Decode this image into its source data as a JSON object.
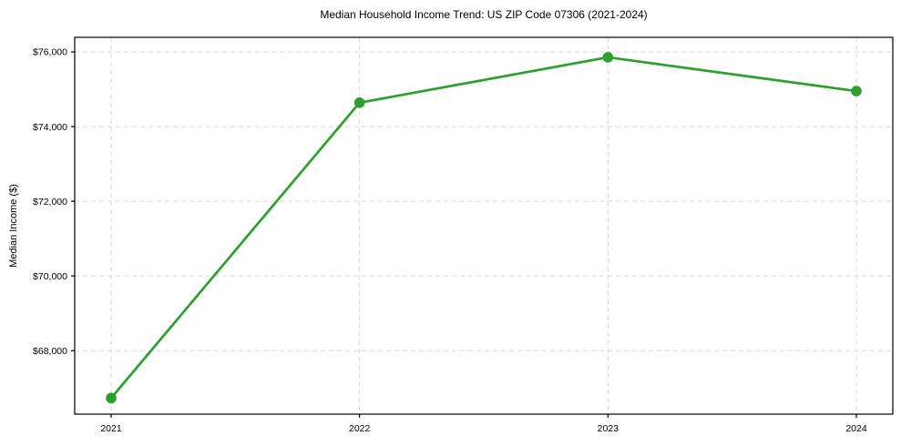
{
  "chart_data": {
    "type": "line",
    "title": "Median Household Income Trend: US ZIP Code 07306 (2021-2024)",
    "xlabel": "",
    "ylabel": "Median Income ($)",
    "categories": [
      "2021",
      "2022",
      "2023",
      "2024"
    ],
    "values": [
      66730,
      74640,
      75855,
      74950
    ],
    "yticks": [
      68000,
      70000,
      72000,
      74000,
      76000
    ],
    "ytick_labels": [
      "$68,000",
      "$70,000",
      "$72,000",
      "$74,000",
      "$76,000"
    ],
    "ylim": [
      66300,
      76390
    ],
    "grid": true,
    "legend": "none",
    "line_color": "#2ca02c",
    "marker": "circle",
    "marker_color": "#2ca02c",
    "grid_color": "#d7d7d7",
    "axis_color": "#000000",
    "background_color": "#ffffff"
  }
}
